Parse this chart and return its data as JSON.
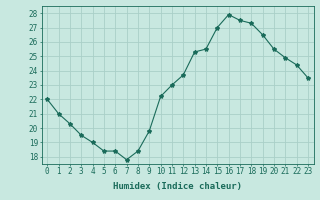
{
  "x": [
    0,
    1,
    2,
    3,
    4,
    5,
    6,
    7,
    8,
    9,
    10,
    11,
    12,
    13,
    14,
    15,
    16,
    17,
    18,
    19,
    20,
    21,
    22,
    23
  ],
  "y": [
    22.0,
    21.0,
    20.3,
    19.5,
    19.0,
    18.4,
    18.4,
    17.8,
    18.4,
    19.8,
    22.2,
    23.0,
    23.7,
    25.3,
    25.5,
    27.0,
    27.9,
    27.5,
    27.3,
    26.5,
    25.5,
    24.9,
    24.4,
    23.5
  ],
  "line_color": "#1a6b5a",
  "marker": "*",
  "marker_size": 3,
  "bg_color": "#c8e8e0",
  "grid_color": "#aacfc8",
  "xlabel": "Humidex (Indice chaleur)",
  "ylabel_ticks": [
    18,
    19,
    20,
    21,
    22,
    23,
    24,
    25,
    26,
    27,
    28
  ],
  "xlim": [
    -0.5,
    23.5
  ],
  "ylim": [
    17.5,
    28.5
  ],
  "xticks": [
    0,
    1,
    2,
    3,
    4,
    5,
    6,
    7,
    8,
    9,
    10,
    11,
    12,
    13,
    14,
    15,
    16,
    17,
    18,
    19,
    20,
    21,
    22,
    23
  ],
  "axis_color": "#1a6b5a",
  "label_fontsize": 5.5,
  "xlabel_fontsize": 6.5
}
